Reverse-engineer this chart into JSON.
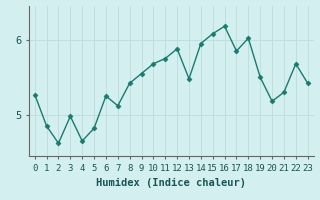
{
  "x": [
    0,
    1,
    2,
    3,
    4,
    5,
    6,
    7,
    8,
    9,
    10,
    11,
    12,
    13,
    14,
    15,
    16,
    17,
    18,
    19,
    20,
    21,
    22,
    23
  ],
  "y": [
    5.27,
    4.85,
    4.62,
    4.98,
    4.65,
    4.82,
    5.25,
    5.12,
    5.42,
    5.55,
    5.68,
    5.75,
    5.88,
    5.48,
    5.95,
    6.08,
    6.18,
    5.85,
    6.02,
    5.5,
    5.18,
    5.3,
    5.68,
    5.42
  ],
  "line_color": "#1a7a6e",
  "marker": "D",
  "marker_size": 2.5,
  "bg_color": "#d4efef",
  "grid_color": "#c0dede",
  "xlabel": "Humidex (Indice chaleur)",
  "ylim": [
    4.45,
    6.45
  ],
  "yticks": [
    5,
    6
  ],
  "xticks": [
    0,
    1,
    2,
    3,
    4,
    5,
    6,
    7,
    8,
    9,
    10,
    11,
    12,
    13,
    14,
    15,
    16,
    17,
    18,
    19,
    20,
    21,
    22,
    23
  ],
  "xlabel_fontsize": 7.5,
  "tick_fontsize": 6.5,
  "line_width": 1.0,
  "spine_color": "#666666"
}
